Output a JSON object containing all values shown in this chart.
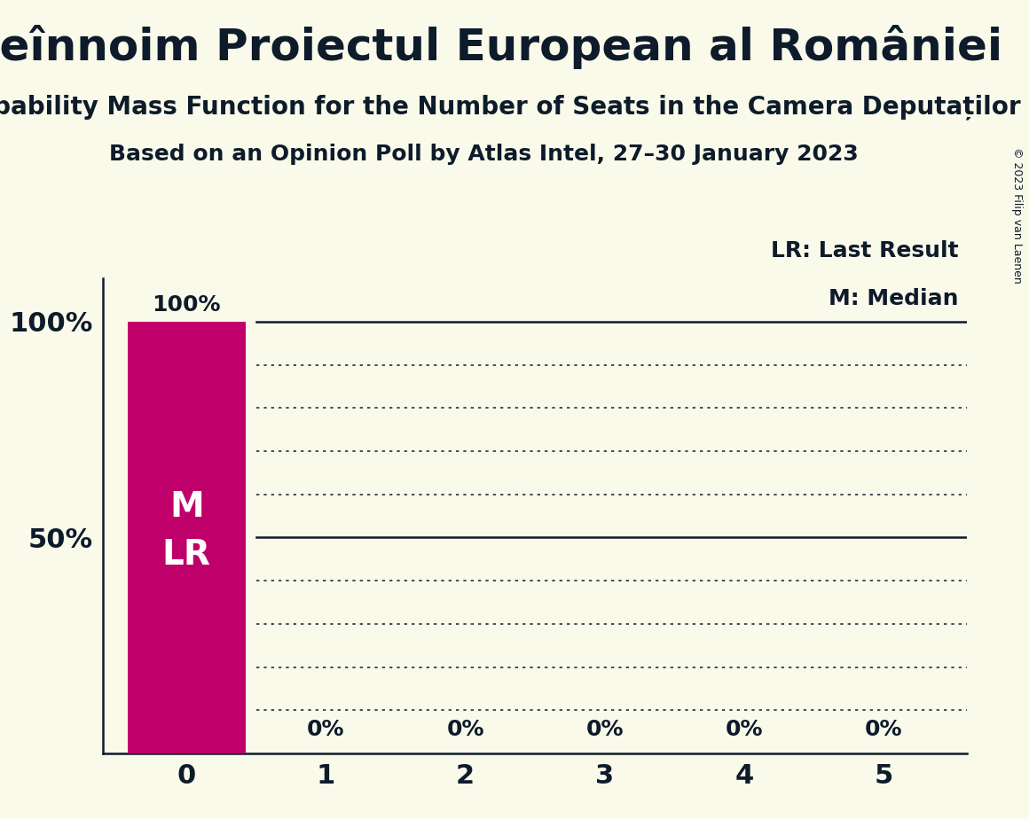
{
  "title": "Reînnoim Proiectul European al României",
  "subtitle1": "Probability Mass Function for the Number of Seats in the Camera Deputaților",
  "subtitle2": "Based on an Opinion Poll by Atlas Intel, 27–30 January 2023",
  "copyright": "© 2023 Filip van Laenen",
  "categories": [
    0,
    1,
    2,
    3,
    4,
    5
  ],
  "values": [
    100,
    0,
    0,
    0,
    0,
    0
  ],
  "bar_color": "#C0006A",
  "bar_labels": [
    "100%",
    "0%",
    "0%",
    "0%",
    "0%",
    "0%"
  ],
  "ylim": [
    0,
    110
  ],
  "legend_lr": "LR: Last Result",
  "legend_m": "M: Median",
  "bg_color": "#fafaeb",
  "text_color": "#0d1b2a",
  "bar_text_M": "M",
  "bar_text_LR": "LR",
  "dotted_levels": [
    10,
    20,
    30,
    40,
    60,
    70,
    80,
    90
  ],
  "solid_levels": [
    50,
    100
  ],
  "title_fontsize": 36,
  "subtitle1_fontsize": 20,
  "subtitle2_fontsize": 18,
  "ytick_fontsize": 22,
  "xtick_fontsize": 22,
  "legend_fontsize": 18,
  "bar_label_fontsize": 18,
  "bar_text_fontsize": 28,
  "copyright_fontsize": 9
}
